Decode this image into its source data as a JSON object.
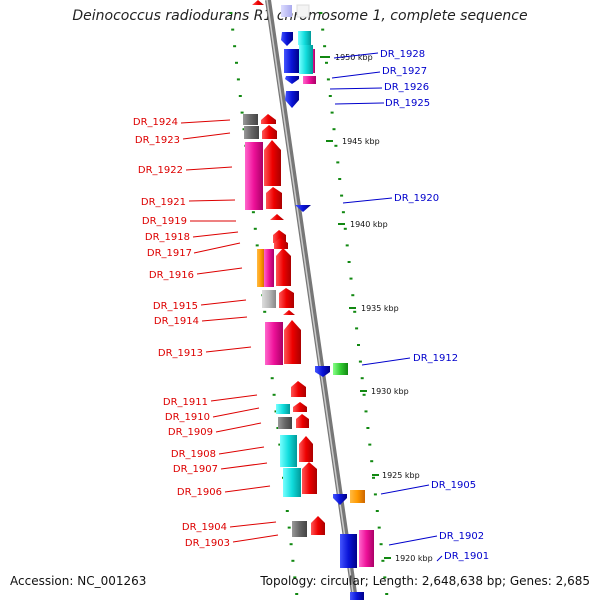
{
  "title": "Deinococcus radiodurans R1 chromosome 1, complete sequence",
  "footer": {
    "accession": "Accession: NC_001263",
    "summary": "Topology: circular; Length: 2,648,638 bp; Genes: 2,685"
  },
  "colors": {
    "left_label": "#dd0000",
    "right_label": "#0000cc",
    "backbone": "#888888",
    "tick": "#118811"
  },
  "scale_marks": [
    {
      "label": "1950 kbp",
      "kbp": 1950
    },
    {
      "label": "1945 kbp",
      "kbp": 1945
    },
    {
      "label": "1940 kbp",
      "kbp": 1940
    },
    {
      "label": "1935 kbp",
      "kbp": 1935
    },
    {
      "label": "1930 kbp",
      "kbp": 1930
    },
    {
      "label": "1925 kbp",
      "kbp": 1925
    },
    {
      "label": "1920 kbp",
      "kbp": 1920
    }
  ],
  "genes_left": [
    {
      "label": "DR_1924"
    },
    {
      "label": "DR_1923"
    },
    {
      "label": "DR_1922"
    },
    {
      "label": "DR_1921"
    },
    {
      "label": "DR_1919"
    },
    {
      "label": "DR_1918"
    },
    {
      "label": "DR_1917"
    },
    {
      "label": "DR_1916"
    },
    {
      "label": "DR_1915"
    },
    {
      "label": "DR_1914"
    },
    {
      "label": "DR_1913"
    },
    {
      "label": "DR_1911"
    },
    {
      "label": "DR_1910"
    },
    {
      "label": "DR_1909"
    },
    {
      "label": "DR_1908"
    },
    {
      "label": "DR_1907"
    },
    {
      "label": "DR_1906"
    },
    {
      "label": "DR_1904"
    },
    {
      "label": "DR_1903"
    }
  ],
  "genes_right": [
    {
      "label": "DR_1928"
    },
    {
      "label": "DR_1927"
    },
    {
      "label": "DR_1926"
    },
    {
      "label": "DR_1925"
    },
    {
      "label": "DR_1920"
    },
    {
      "label": "DR_1912"
    },
    {
      "label": "DR_1905"
    },
    {
      "label": "DR_1902"
    },
    {
      "label": "DR_1901"
    }
  ]
}
